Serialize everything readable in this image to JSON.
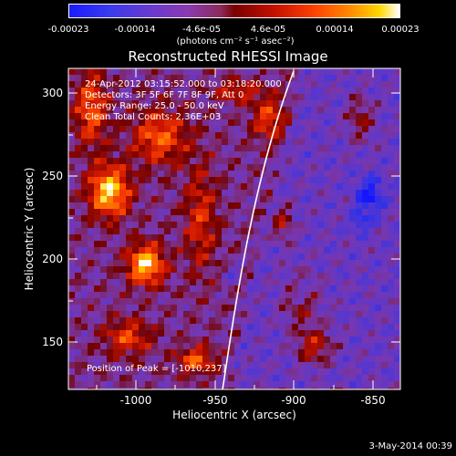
{
  "colorbar": {
    "ticks": [
      "-0.00023",
      "-0.00014",
      "-4.6e-05",
      "4.6e-05",
      "0.00014",
      "0.00023"
    ],
    "unit_label": "(photons cm⁻² s⁻¹ asec⁻²)"
  },
  "title": "Reconstructed RHESSI Image",
  "info": {
    "line1": "24-Apr-2012 03:15:52.000 to 03:18:20.000",
    "line2": "Detectors: 3F 5F 6F 7F 8F 9F, Att 0",
    "line3": "Energy Range: 25.0 - 50.0 keV",
    "line4": "Clean  Total Counts: 2.36E+03"
  },
  "peak_label": "Position of Peak = [-1010,237]",
  "axes": {
    "xlabel": "Heliocentric X (arcsec)",
    "ylabel": "Heliocentric Y (arcsec)",
    "xticks": [
      "-1000",
      "-950",
      "-900",
      "-850"
    ],
    "yticks": [
      "300",
      "250",
      "200",
      "150"
    ]
  },
  "footer_date": "3-May-2014 00:39",
  "colors": {
    "background": "#000000",
    "limb": "#ffffff"
  }
}
